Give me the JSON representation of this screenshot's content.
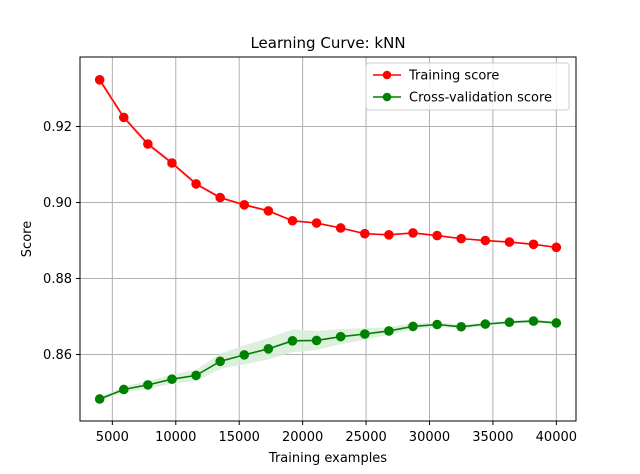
{
  "chart_data": {
    "type": "line",
    "title": "Learning Curve: kNN",
    "xlabel": "Training examples",
    "ylabel": "Score",
    "xlim": [
      2450,
      41550
    ],
    "ylim": [
      0.8425,
      0.9383
    ],
    "grid": true,
    "legend_position": "top-right",
    "xticks": [
      5000,
      10000,
      15000,
      20000,
      25000,
      30000,
      35000,
      40000
    ],
    "xtick_labels": [
      "5000",
      "10000",
      "15000",
      "20000",
      "25000",
      "30000",
      "35000",
      "40000"
    ],
    "yticks": [
      0.86,
      0.88,
      0.9,
      0.92
    ],
    "ytick_labels": [
      "0.86",
      "0.88",
      "0.90",
      "0.92"
    ],
    "x": [
      4000,
      5900,
      7800,
      9700,
      11600,
      13500,
      15400,
      17300,
      19200,
      21100,
      23000,
      24900,
      26800,
      28700,
      30600,
      32500,
      34400,
      36300,
      38200,
      40000
    ],
    "series": [
      {
        "name": "Training score",
        "color": "#ff0000",
        "band_color": "#ffd6d6",
        "values": [
          0.9323,
          0.9224,
          0.9154,
          0.9104,
          0.9049,
          0.9013,
          0.8994,
          0.8978,
          0.8952,
          0.8946,
          0.8933,
          0.8918,
          0.8915,
          0.892,
          0.8913,
          0.8905,
          0.89,
          0.8896,
          0.889,
          0.8882
        ],
        "std": [
          0.0008,
          0.0007,
          0.0007,
          0.0006,
          0.0005,
          0.0004,
          0.0003,
          0.0003,
          0.0003,
          0.0002,
          0.0002,
          0.0002,
          0.0002,
          0.0002,
          0.0002,
          0.0002,
          0.0002,
          0.0002,
          0.0002,
          0.0002
        ]
      },
      {
        "name": "Cross-validation score",
        "color": "#008000",
        "band_color": "#d7ecd7",
        "values": [
          0.8483,
          0.8508,
          0.852,
          0.8535,
          0.8545,
          0.8582,
          0.8599,
          0.8615,
          0.8636,
          0.8637,
          0.8647,
          0.8654,
          0.8662,
          0.8674,
          0.8679,
          0.8673,
          0.868,
          0.8685,
          0.8688,
          0.8683
        ],
        "std": [
          0.0004,
          0.0008,
          0.001,
          0.0012,
          0.0015,
          0.002,
          0.0025,
          0.0028,
          0.003,
          0.0025,
          0.002,
          0.0015,
          0.001,
          0.0008,
          0.0006,
          0.0005,
          0.0005,
          0.0004,
          0.0004,
          0.0004
        ]
      }
    ]
  }
}
